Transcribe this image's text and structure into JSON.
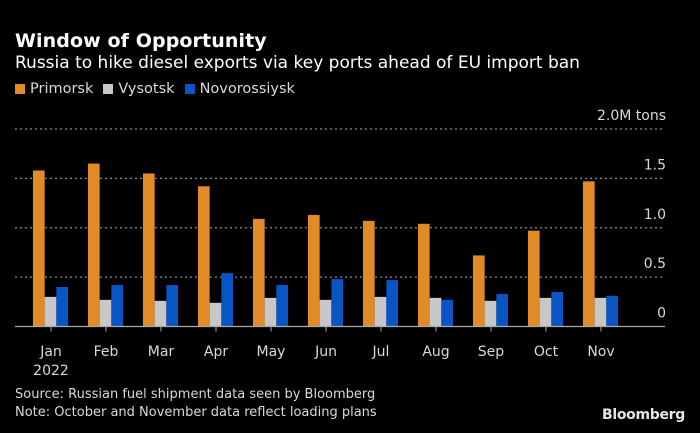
{
  "header": {
    "title": "Window of Opportunity",
    "subtitle": "Russia to hike diesel exports via key ports ahead of EU import ban"
  },
  "footer": {
    "source": "Source: Russian fuel shipment data seen by Bloomberg",
    "note": "Note: October and November data reflect loading plans",
    "brand": "Bloomberg"
  },
  "chart_data": {
    "type": "bar",
    "title": "Window of Opportunity",
    "subtitle": "Russia to hike diesel exports via key ports ahead of EU import ban",
    "xlabel": "",
    "ylabel": "",
    "categories": [
      "Jan",
      "Feb",
      "Mar",
      "Apr",
      "May",
      "Jun",
      "Jul",
      "Aug",
      "Sep",
      "Oct",
      "Nov"
    ],
    "year_label": "2022",
    "ylim": [
      0,
      2.0
    ],
    "y_ticks": [
      {
        "value": 0,
        "label": "0"
      },
      {
        "value": 0.5,
        "label": "0.5"
      },
      {
        "value": 1.0,
        "label": "1.0"
      },
      {
        "value": 1.5,
        "label": "1.5"
      },
      {
        "value": 2.0,
        "label": "2.0M tons"
      }
    ],
    "grid": true,
    "legend_position": "top-left",
    "series": [
      {
        "name": "Primorsk",
        "color": "#e08a28",
        "values": [
          1.58,
          1.65,
          1.55,
          1.42,
          1.09,
          1.13,
          1.07,
          1.04,
          0.72,
          0.97,
          1.47
        ]
      },
      {
        "name": "Vysotsk",
        "color": "#c8c8c8",
        "values": [
          0.3,
          0.27,
          0.26,
          0.24,
          0.29,
          0.27,
          0.3,
          0.29,
          0.26,
          0.29,
          0.29
        ]
      },
      {
        "name": "Novorossiysk",
        "color": "#0a54c4",
        "values": [
          0.4,
          0.42,
          0.42,
          0.54,
          0.42,
          0.48,
          0.47,
          0.27,
          0.33,
          0.35,
          0.31
        ]
      }
    ]
  }
}
